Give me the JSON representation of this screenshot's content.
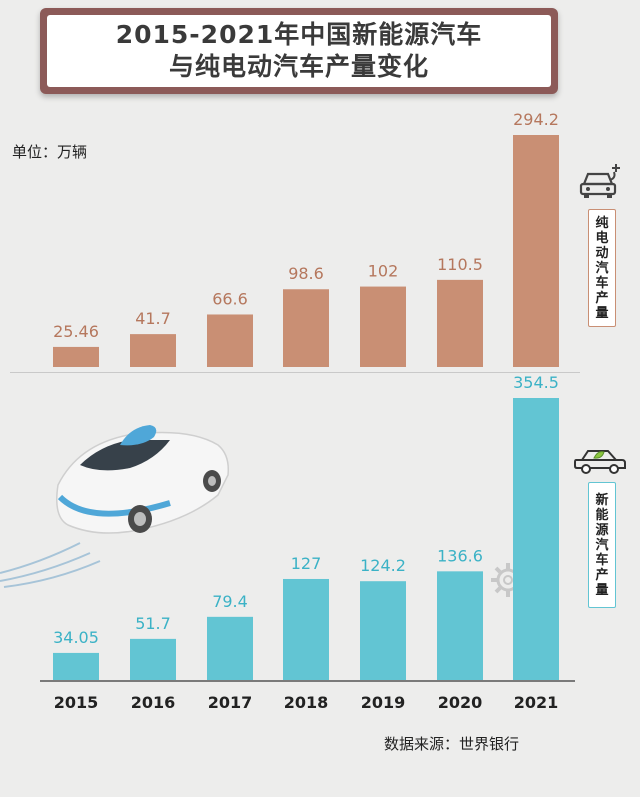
{
  "title": {
    "line1": "2015-2021年中国新能源汽车",
    "line2": "与纯电动汽车产量变化"
  },
  "unit": "单位：万辆",
  "source": "数据来源：世界银行",
  "colors": {
    "background": "#ededec",
    "ev_bar": "#c98f74",
    "nev_bar": "#62c5d3",
    "title_frame": "#8c5a58"
  },
  "legend": {
    "ev": [
      "纯",
      "电",
      "动",
      "汽",
      "车",
      "产",
      "量"
    ],
    "nev": [
      "新",
      "能",
      "源",
      "汽",
      "车",
      "产",
      "量"
    ]
  },
  "icons": [
    "car-charging-icon",
    "eco-car-icon"
  ],
  "chart_data": [
    {
      "type": "bar",
      "categories": [
        "2015",
        "2016",
        "2017",
        "2018",
        "2019",
        "2020",
        "2021"
      ],
      "series": [
        {
          "name": "纯电动汽车产量",
          "values": [
            25.46,
            41.7,
            66.6,
            98.6,
            102,
            110.5,
            294.2
          ]
        }
      ],
      "value_labels": [
        "25.46",
        "41.7",
        "66.6",
        "98.6",
        "102",
        "110.5",
        "294.2"
      ],
      "xlabel": "",
      "ylabel": "万辆",
      "grid": false,
      "legend_position": "right"
    },
    {
      "type": "bar",
      "categories": [
        "2015",
        "2016",
        "2017",
        "2018",
        "2019",
        "2020",
        "2021"
      ],
      "series": [
        {
          "name": "新能源汽车产量",
          "values": [
            34.05,
            51.7,
            79.4,
            127,
            124.2,
            136.6,
            354.5
          ]
        }
      ],
      "value_labels": [
        "34.05",
        "51.7",
        "79.4",
        "127",
        "124.2",
        "136.6",
        "354.5"
      ],
      "xlabel": "",
      "ylabel": "万辆",
      "grid": false,
      "legend_position": "right"
    }
  ]
}
